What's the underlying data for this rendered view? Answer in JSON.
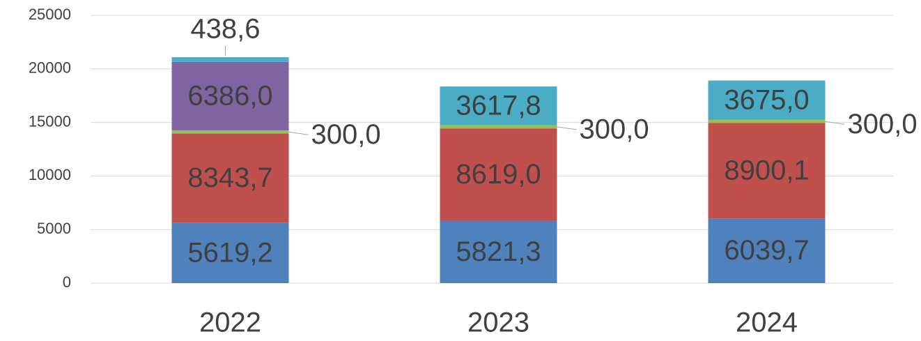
{
  "chart_data": {
    "type": "stacked_bar",
    "categories": [
      "2022",
      "2023",
      "2024"
    ],
    "series": [
      {
        "color": "#4f81bd",
        "values": [
          5619.2,
          5821.3,
          6039.7
        ],
        "value_labels": [
          "5619,2",
          "5821,3",
          "6039,7"
        ]
      },
      {
        "color": "#c0504d",
        "values": [
          8343.7,
          8619.0,
          8900.1
        ],
        "value_labels": [
          "8343,7",
          "8619,0",
          "8900,1"
        ]
      },
      {
        "color": "#9bbb59",
        "values": [
          300.0,
          300.0,
          300.0
        ],
        "value_labels": [
          "300,0",
          "300,0",
          "300,0"
        ]
      },
      {
        "color": "#8064a2",
        "values": [
          6386.0,
          null,
          null
        ],
        "value_labels": [
          "6386,0",
          null,
          null
        ]
      },
      {
        "color": "#4bacc6",
        "values": [
          438.6,
          3617.8,
          3675.0
        ],
        "value_labels": [
          "438,6",
          "3617,8",
          "3675,0"
        ]
      }
    ],
    "ylim": [
      0,
      25000
    ],
    "yticks": [
      0,
      5000,
      10000,
      15000,
      20000,
      25000
    ],
    "grid": true
  }
}
